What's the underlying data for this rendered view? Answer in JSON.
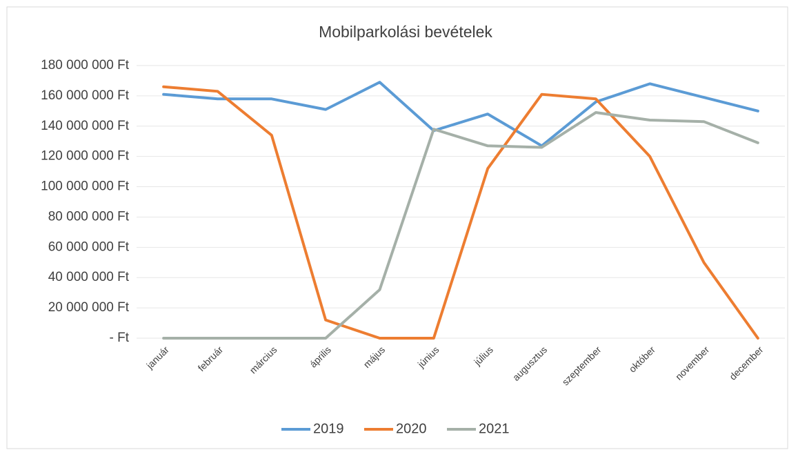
{
  "chart_data": {
    "type": "line",
    "title": "Mobilparkolási bevételek",
    "categories": [
      "január",
      "február",
      "március",
      "április",
      "május",
      "június",
      "július",
      "augusztus",
      "szeptember",
      "október",
      "november",
      "december"
    ],
    "series": [
      {
        "name": "2019",
        "color": "#5b9bd5",
        "values": [
          161000000,
          158000000,
          158000000,
          151000000,
          169000000,
          137000000,
          148000000,
          127000000,
          156000000,
          168000000,
          159000000,
          150000000
        ]
      },
      {
        "name": "2020",
        "color": "#ed7d31",
        "values": [
          166000000,
          163000000,
          134000000,
          12000000,
          0,
          0,
          112000000,
          161000000,
          158000000,
          120000000,
          50000000,
          0
        ]
      },
      {
        "name": "2021",
        "color": "#a5b0a8",
        "values": [
          0,
          0,
          0,
          0,
          32000000,
          138000000,
          127000000,
          126000000,
          149000000,
          144000000,
          143000000,
          129000000
        ]
      }
    ],
    "ylim": [
      0,
      180000000
    ],
    "yticks": [
      {
        "value": 0,
        "label": "-  Ft"
      },
      {
        "value": 20000000,
        "label": "20 000 000 Ft"
      },
      {
        "value": 40000000,
        "label": "40 000 000 Ft"
      },
      {
        "value": 60000000,
        "label": "60 000 000 Ft"
      },
      {
        "value": 80000000,
        "label": "80 000 000 Ft"
      },
      {
        "value": 100000000,
        "label": "100 000 000 Ft"
      },
      {
        "value": 120000000,
        "label": "120 000 000 Ft"
      },
      {
        "value": 140000000,
        "label": "140 000 000 Ft"
      },
      {
        "value": 160000000,
        "label": "160 000 000 Ft"
      },
      {
        "value": 180000000,
        "label": "180 000 000 Ft"
      }
    ],
    "grid": true,
    "legend": "bottom"
  }
}
